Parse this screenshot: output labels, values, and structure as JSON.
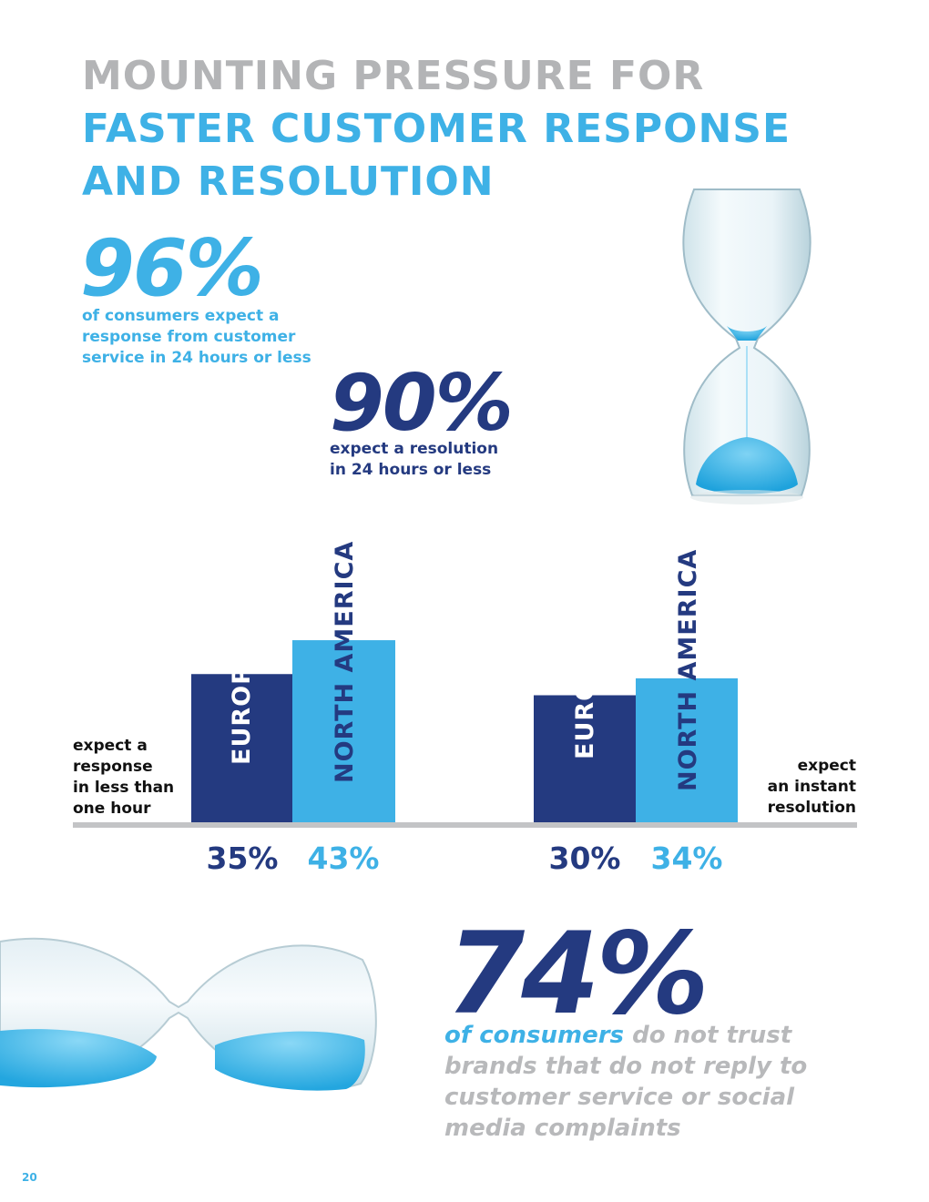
{
  "title": {
    "line1": "MOUNTING PRESSURE FOR",
    "line2": "FASTER CUSTOMER RESPONSE",
    "line3": "AND RESOLUTION"
  },
  "stat_response": {
    "value": "96%",
    "text": [
      "of consumers expect a",
      "response from customer",
      "service in 24 hours or less"
    ]
  },
  "stat_resolution": {
    "value": "90%",
    "text": [
      "expect a resolution",
      "in 24 hours or less"
    ]
  },
  "left_group_label": [
    "expect a",
    "response",
    "in less than",
    "one hour"
  ],
  "right_group_label": [
    "expect",
    "an instant",
    "resolution"
  ],
  "stat_trust": {
    "value": "74%",
    "highlight": "of consumers",
    "rest": " do not trust brands that do not reply to customer service or social media complaints"
  },
  "page_number": "20",
  "colors": {
    "navy": "#243a80",
    "blue": "#3eb1e6",
    "gray": "#b3b4b6",
    "baseline": "#c3c4c6"
  },
  "chart_data": {
    "type": "bar",
    "categories": [
      "expect a response in less than one hour",
      "expect an instant resolution"
    ],
    "series": [
      {
        "name": "EUROPE",
        "values": [
          35,
          30
        ]
      },
      {
        "name": "NORTH AMERICA",
        "values": [
          43,
          34
        ]
      }
    ],
    "value_labels": [
      [
        "35%",
        "43%"
      ],
      [
        "30%",
        "34%"
      ]
    ],
    "ylim": [
      0,
      100
    ],
    "grid": false
  }
}
